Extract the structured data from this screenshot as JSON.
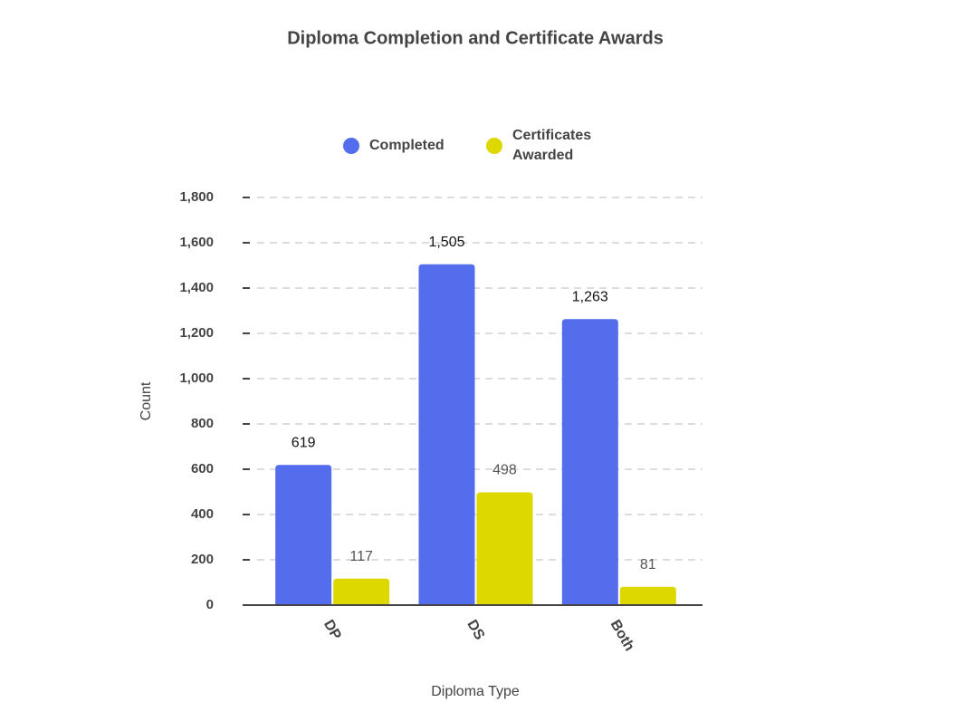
{
  "chart_data": {
    "type": "grouped_bar",
    "title": "Diploma Completion and Certificate Awards",
    "x_label": "Diploma Type",
    "y_label": "Count",
    "categories": [
      "DP",
      "DS",
      "Both"
    ],
    "series": [
      {
        "name": "Completed",
        "color": "#546ded",
        "values": [
          619,
          1505,
          1263
        ],
        "value_labels": [
          "619",
          "1,505",
          "1,263"
        ]
      },
      {
        "name": "Certificates Awarded",
        "color": "#dcd800",
        "values": [
          117,
          498,
          81
        ]
      }
    ],
    "ylim": [
      0,
      1800
    ],
    "yticks": [
      0,
      200,
      400,
      600,
      800,
      {
        "value": 1000,
        "label": "1,000"
      },
      {
        "value": 1200,
        "label": "1,200"
      },
      {
        "value": 1400,
        "label": "1,400"
      },
      {
        "value": 1600,
        "label": "1,600"
      },
      {
        "value": 1800,
        "label": "1,800"
      }
    ],
    "grid": true,
    "legend": "top"
  }
}
